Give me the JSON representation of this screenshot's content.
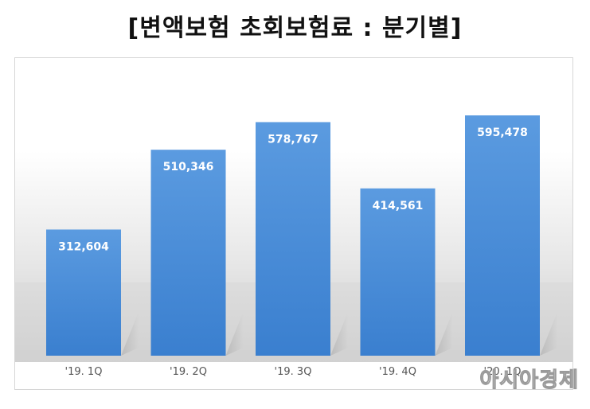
{
  "chart_data": {
    "type": "bar",
    "title": "[변액보험 초회보험료 : 분기별]",
    "categories": [
      "'19. 1Q",
      "'19. 2Q",
      "'19. 3Q",
      "'19. 4Q",
      "'20. 1Q"
    ],
    "values": [
      312604,
      510346,
      578767,
      414561,
      595478
    ],
    "value_labels": [
      "312,604",
      "510,346",
      "578,767",
      "414,561",
      "595,478"
    ],
    "ylim": [
      0,
      700000
    ],
    "grid": false,
    "legend": "none",
    "bar_color": "#4a8fd8"
  },
  "watermark": "아시아경제"
}
